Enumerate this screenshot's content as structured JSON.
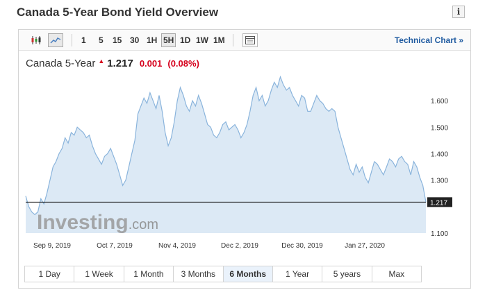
{
  "page": {
    "title": "Canada 5-Year Bond Yield Overview",
    "info_icon": "i"
  },
  "toolbar": {
    "icons": [
      "candlestick-icon",
      "line-chart-icon"
    ],
    "intervals": [
      {
        "label": "1",
        "active": false
      },
      {
        "label": "5",
        "active": false
      },
      {
        "label": "15",
        "active": false
      },
      {
        "label": "30",
        "active": false
      },
      {
        "label": "1H",
        "active": false
      },
      {
        "label": "5H",
        "active": true
      },
      {
        "label": "1D",
        "active": false
      },
      {
        "label": "1W",
        "active": false
      },
      {
        "label": "1M",
        "active": false
      }
    ],
    "table_icon": "table-icon",
    "technical_chart": "Technical Chart »"
  },
  "quote": {
    "name": "Canada 5-Year",
    "price": "1.217",
    "change": "0.001",
    "change_pct": "(0.08%)",
    "direction": "up"
  },
  "chart_data": {
    "type": "area",
    "title": "",
    "x_tick_labels": [
      "Sep 9, 2019",
      "Oct 7, 2019",
      "Nov 4, 2019",
      "Dec 2, 2019",
      "Dec 30, 2019",
      "Jan 27, 2020"
    ],
    "y_tick_labels": [
      "1.100",
      "1.300",
      "1.400",
      "1.500",
      "1.600"
    ],
    "y_range": [
      1.1,
      1.7
    ],
    "last_value_label": "1.217",
    "watermark": "Investing.com",
    "grid": false,
    "series": [
      {
        "values": [
          1.24,
          1.2,
          1.18,
          1.17,
          1.18,
          1.23,
          1.21,
          1.25,
          1.3,
          1.35,
          1.37,
          1.4,
          1.42,
          1.46,
          1.44,
          1.48,
          1.47,
          1.5,
          1.49,
          1.48,
          1.46,
          1.47,
          1.43,
          1.4,
          1.38,
          1.36,
          1.39,
          1.4,
          1.42,
          1.39,
          1.36,
          1.32,
          1.28,
          1.3,
          1.35,
          1.4,
          1.45,
          1.55,
          1.58,
          1.61,
          1.59,
          1.63,
          1.6,
          1.57,
          1.62,
          1.56,
          1.48,
          1.43,
          1.46,
          1.52,
          1.6,
          1.65,
          1.62,
          1.58,
          1.56,
          1.6,
          1.58,
          1.62,
          1.59,
          1.55,
          1.51,
          1.5,
          1.47,
          1.46,
          1.48,
          1.51,
          1.52,
          1.49,
          1.5,
          1.51,
          1.49,
          1.46,
          1.48,
          1.51,
          1.56,
          1.62,
          1.65,
          1.6,
          1.62,
          1.58,
          1.6,
          1.64,
          1.67,
          1.65,
          1.69,
          1.66,
          1.64,
          1.65,
          1.62,
          1.6,
          1.58,
          1.62,
          1.61,
          1.56,
          1.56,
          1.59,
          1.62,
          1.6,
          1.59,
          1.57,
          1.56,
          1.57,
          1.56,
          1.5,
          1.46,
          1.42,
          1.38,
          1.34,
          1.32,
          1.36,
          1.33,
          1.35,
          1.31,
          1.29,
          1.33,
          1.37,
          1.36,
          1.34,
          1.32,
          1.35,
          1.38,
          1.37,
          1.35,
          1.38,
          1.39,
          1.37,
          1.36,
          1.32,
          1.37,
          1.35,
          1.31,
          1.28,
          1.217
        ]
      }
    ]
  },
  "ranges": [
    {
      "label": "1 Day",
      "active": false
    },
    {
      "label": "1 Week",
      "active": false
    },
    {
      "label": "1 Month",
      "active": false
    },
    {
      "label": "3 Months",
      "active": false
    },
    {
      "label": "6 Months",
      "active": true
    },
    {
      "label": "1 Year",
      "active": false
    },
    {
      "label": "5 years",
      "active": false
    },
    {
      "label": "Max",
      "active": false
    }
  ],
  "colors": {
    "area_fill": "#dce9f5",
    "line": "#8ab4dc",
    "down": "#d6001c",
    "link": "#1e5aa0"
  }
}
